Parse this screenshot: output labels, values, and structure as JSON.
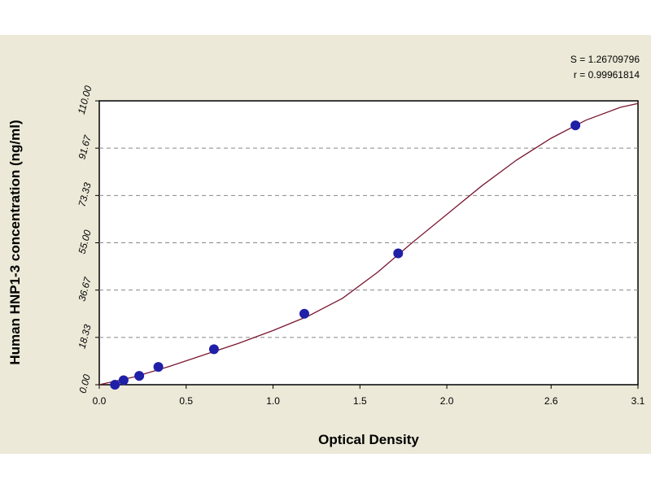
{
  "chart_data": {
    "type": "scatter",
    "title": "",
    "xlabel": "Optical Density",
    "ylabel": "Human HNP1-3 concentration (ng/ml)",
    "xlim": [
      0.0,
      3.1
    ],
    "ylim": [
      0.0,
      110.0
    ],
    "xticks": [
      0.0,
      0.5,
      1.0,
      1.5,
      2.0,
      2.6,
      3.1
    ],
    "xtick_labels": [
      "0.0",
      "0.5",
      "1.0",
      "1.5",
      "2.0",
      "2.6",
      "3.1"
    ],
    "yticks": [
      0.0,
      18.33,
      36.67,
      55.0,
      73.33,
      91.67,
      110.0
    ],
    "ytick_labels": [
      "0.00",
      "18.33",
      "36.67",
      "55.00",
      "73.33",
      "91.67",
      "110.00"
    ],
    "grid": "horizontal dashed",
    "stats": [
      "S = 1.26709796",
      "r = 0.99961814"
    ],
    "series": [
      {
        "kind": "points",
        "x": [
          0.09,
          0.14,
          0.23,
          0.34,
          0.66,
          1.18,
          1.72,
          2.74
        ],
        "y": [
          0.0,
          1.72,
          3.44,
          6.88,
          13.75,
          27.5,
          50.9,
          100.5
        ]
      },
      {
        "kind": "fit-curve",
        "x": [
          0.0,
          0.2,
          0.4,
          0.6,
          0.8,
          1.0,
          1.2,
          1.4,
          1.6,
          1.8,
          2.0,
          2.2,
          2.4,
          2.6,
          2.8,
          3.0,
          3.1
        ],
        "y": [
          0.0,
          3.0,
          7.0,
          11.5,
          16.0,
          21.0,
          26.5,
          33.5,
          43.5,
          55.0,
          66.0,
          77.0,
          87.0,
          95.5,
          102.5,
          107.5,
          109.0
        ]
      }
    ],
    "colors": {
      "panel_bg": "#ece9d8",
      "plot_bg": "#ffffff",
      "points": "#1f1fa8",
      "curve": "#7a1830",
      "grid": "#888888"
    }
  }
}
